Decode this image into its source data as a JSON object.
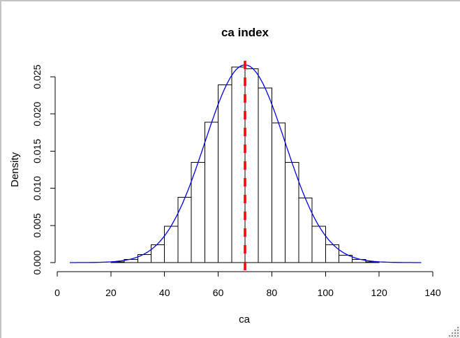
{
  "window": {
    "background": "#ffffff",
    "border_color": "#c3c3c3"
  },
  "chart_data": {
    "type": "bar",
    "subtype": "histogram_with_density_curve",
    "title": "ca index",
    "xlabel": "ca",
    "ylabel": "Density",
    "x_tick_values": [
      0,
      20,
      40,
      60,
      80,
      100,
      120,
      140
    ],
    "x_tick_labels": [
      "0",
      "20",
      "40",
      "60",
      "80",
      "100",
      "120",
      "140"
    ],
    "y_tick_values": [
      0.0,
      0.005,
      0.01,
      0.015,
      0.02,
      0.025
    ],
    "y_tick_labels": [
      "0.000",
      "0.005",
      "0.010",
      "0.015",
      "0.020",
      "0.025"
    ],
    "xlim": [
      0,
      140
    ],
    "ylim": [
      0,
      0.0267
    ],
    "grid": "off",
    "legend": "none",
    "bin_width": 5,
    "bin_left_edges": [
      20,
      25,
      30,
      35,
      40,
      45,
      50,
      55,
      60,
      65,
      70,
      75,
      80,
      85,
      90,
      95,
      100,
      105,
      110,
      115
    ],
    "bin_densities": [
      0.0001,
      0.0004,
      0.0011,
      0.0024,
      0.0049,
      0.0088,
      0.0135,
      0.0189,
      0.0239,
      0.0263,
      0.0261,
      0.0235,
      0.0188,
      0.0135,
      0.0087,
      0.0049,
      0.0024,
      0.001,
      0.0004,
      0.0001
    ],
    "bar_fill": "#ffffff",
    "bar_stroke": "#000000",
    "density_curve": {
      "color": "#0000ee",
      "mean": 70,
      "sd": 15,
      "peak_density": 0.0266,
      "x_range": [
        4.7,
        135.8
      ]
    },
    "mean_line": {
      "x": 70,
      "color": "#ff0000",
      "style": "dashed",
      "line_width": 3
    },
    "axis_color": "#000000"
  },
  "grip": {
    "name": "resize-grip"
  }
}
